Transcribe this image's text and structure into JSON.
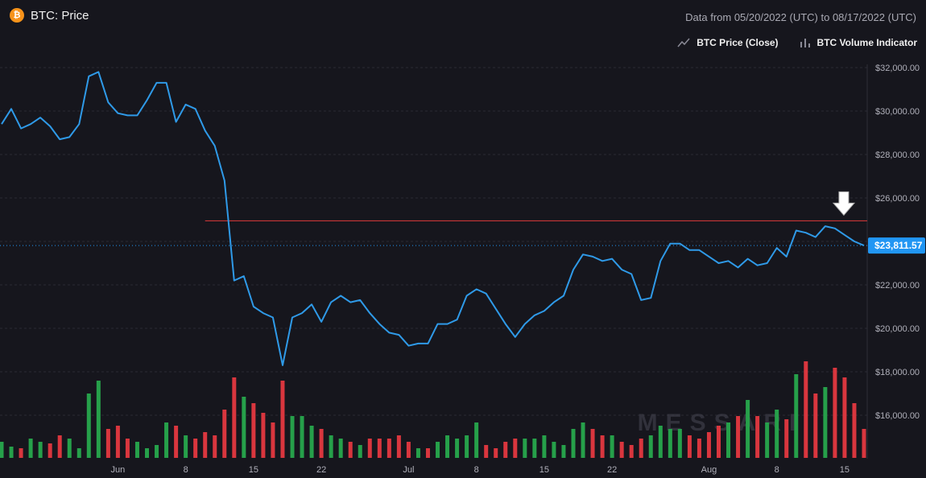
{
  "header": {
    "coin_symbol": "₿",
    "title": "BTC: Price",
    "date_range": "Data from 05/20/2022 (UTC) to 08/17/2022 (UTC)"
  },
  "legend": {
    "price_label": "BTC Price (Close)",
    "volume_label": "BTC Volume Indicator",
    "price_icon": "line-chart-icon",
    "volume_icon": "bar-chart-icon"
  },
  "watermark": "MESSARI",
  "colors": {
    "line": "#2f9ae8",
    "up": "#26a04a",
    "down": "#d9363e",
    "resistance": "#e03a3a",
    "price_tag": "#2196f3",
    "arrow": "#ffffff"
  },
  "chart_data": {
    "type": "line",
    "x_start": "2022-05-20",
    "x_end": "2022-08-17",
    "ylim": [
      14000,
      34000
    ],
    "y_ticks": [
      16000,
      18000,
      20000,
      22000,
      24000,
      26000,
      28000,
      30000,
      32000
    ],
    "y_tick_labels": [
      "$16,000.00",
      "$18,000.00",
      "$20,000.00",
      "$22,000.00",
      "",
      "$26,000.00",
      "$28,000.00",
      "$30,000.00",
      "$32,000.00"
    ],
    "x_ticks": [
      {
        "date": "2022-06-01",
        "label": "Jun"
      },
      {
        "date": "2022-06-08",
        "label": "8"
      },
      {
        "date": "2022-06-15",
        "label": "15"
      },
      {
        "date": "2022-06-22",
        "label": "22"
      },
      {
        "date": "2022-07-01",
        "label": "Jul"
      },
      {
        "date": "2022-07-08",
        "label": "8"
      },
      {
        "date": "2022-07-15",
        "label": "15"
      },
      {
        "date": "2022-07-22",
        "label": "22"
      },
      {
        "date": "2022-08-01",
        "label": "Aug"
      },
      {
        "date": "2022-08-08",
        "label": "8"
      },
      {
        "date": "2022-08-15",
        "label": "15"
      }
    ],
    "last_price": 23811.57,
    "last_price_label": "$23,811.57",
    "resistance_level": 24950,
    "resistance_start": "2022-06-10",
    "arrow_date": "2022-08-15",
    "series": [
      {
        "name": "BTC Price (Close)",
        "x": [
          "2022-05-20",
          "2022-05-21",
          "2022-05-22",
          "2022-05-23",
          "2022-05-24",
          "2022-05-25",
          "2022-05-26",
          "2022-05-27",
          "2022-05-28",
          "2022-05-29",
          "2022-05-30",
          "2022-05-31",
          "2022-06-01",
          "2022-06-02",
          "2022-06-03",
          "2022-06-04",
          "2022-06-05",
          "2022-06-06",
          "2022-06-07",
          "2022-06-08",
          "2022-06-09",
          "2022-06-10",
          "2022-06-11",
          "2022-06-12",
          "2022-06-13",
          "2022-06-14",
          "2022-06-15",
          "2022-06-16",
          "2022-06-17",
          "2022-06-18",
          "2022-06-19",
          "2022-06-20",
          "2022-06-21",
          "2022-06-22",
          "2022-06-23",
          "2022-06-24",
          "2022-06-25",
          "2022-06-26",
          "2022-06-27",
          "2022-06-28",
          "2022-06-29",
          "2022-06-30",
          "2022-07-01",
          "2022-07-02",
          "2022-07-03",
          "2022-07-04",
          "2022-07-05",
          "2022-07-06",
          "2022-07-07",
          "2022-07-08",
          "2022-07-09",
          "2022-07-10",
          "2022-07-11",
          "2022-07-12",
          "2022-07-13",
          "2022-07-14",
          "2022-07-15",
          "2022-07-16",
          "2022-07-17",
          "2022-07-18",
          "2022-07-19",
          "2022-07-20",
          "2022-07-21",
          "2022-07-22",
          "2022-07-23",
          "2022-07-24",
          "2022-07-25",
          "2022-07-26",
          "2022-07-27",
          "2022-07-28",
          "2022-07-29",
          "2022-07-30",
          "2022-07-31",
          "2022-08-01",
          "2022-08-02",
          "2022-08-03",
          "2022-08-04",
          "2022-08-05",
          "2022-08-06",
          "2022-08-07",
          "2022-08-08",
          "2022-08-09",
          "2022-08-10",
          "2022-08-11",
          "2022-08-12",
          "2022-08-13",
          "2022-08-14",
          "2022-08-15",
          "2022-08-16",
          "2022-08-17"
        ],
        "values": [
          29400,
          30100,
          29200,
          29400,
          29700,
          29300,
          28700,
          28800,
          29400,
          31600,
          31800,
          30400,
          29900,
          29800,
          29800,
          30500,
          31300,
          31300,
          29500,
          30300,
          30100,
          29100,
          28400,
          26800,
          22200,
          22400,
          21000,
          20700,
          20500,
          18300,
          20500,
          20700,
          21100,
          20300,
          21200,
          21500,
          21200,
          21300,
          20700,
          20200,
          19800,
          19700,
          19200,
          19300,
          19300,
          20200,
          20200,
          20400,
          21500,
          21800,
          21600,
          20900,
          20200,
          19600,
          20200,
          20600,
          20800,
          21200,
          21500,
          22700,
          23400,
          23300,
          23100,
          23200,
          22700,
          22500,
          21300,
          21400,
          23100,
          23900,
          23900,
          23600,
          23600,
          23300,
          23000,
          23100,
          22800,
          23200,
          22900,
          23000,
          23700,
          23300,
          24500,
          24400,
          24200,
          24700,
          24600,
          24300,
          24000,
          23812
        ]
      },
      {
        "name": "BTC Volume Indicator",
        "x": [
          "2022-05-20",
          "2022-05-21",
          "2022-05-22",
          "2022-05-23",
          "2022-05-24",
          "2022-05-25",
          "2022-05-26",
          "2022-05-27",
          "2022-05-28",
          "2022-05-29",
          "2022-05-30",
          "2022-05-31",
          "2022-06-01",
          "2022-06-02",
          "2022-06-03",
          "2022-06-04",
          "2022-06-05",
          "2022-06-06",
          "2022-06-07",
          "2022-06-08",
          "2022-06-09",
          "2022-06-10",
          "2022-06-11",
          "2022-06-12",
          "2022-06-13",
          "2022-06-14",
          "2022-06-15",
          "2022-06-16",
          "2022-06-17",
          "2022-06-18",
          "2022-06-19",
          "2022-06-20",
          "2022-06-21",
          "2022-06-22",
          "2022-06-23",
          "2022-06-24",
          "2022-06-25",
          "2022-06-26",
          "2022-06-27",
          "2022-06-28",
          "2022-06-29",
          "2022-06-30",
          "2022-07-01",
          "2022-07-02",
          "2022-07-03",
          "2022-07-04",
          "2022-07-05",
          "2022-07-06",
          "2022-07-07",
          "2022-07-08",
          "2022-07-09",
          "2022-07-10",
          "2022-07-11",
          "2022-07-12",
          "2022-07-13",
          "2022-07-14",
          "2022-07-15",
          "2022-07-16",
          "2022-07-17",
          "2022-07-18",
          "2022-07-19",
          "2022-07-20",
          "2022-07-21",
          "2022-07-22",
          "2022-07-23",
          "2022-07-24",
          "2022-07-25",
          "2022-07-26",
          "2022-07-27",
          "2022-07-28",
          "2022-07-29",
          "2022-07-30",
          "2022-07-31",
          "2022-08-01",
          "2022-08-02",
          "2022-08-03",
          "2022-08-04",
          "2022-08-05",
          "2022-08-06",
          "2022-08-07",
          "2022-08-08",
          "2022-08-09",
          "2022-08-10",
          "2022-08-11",
          "2022-08-12",
          "2022-08-13",
          "2022-08-14",
          "2022-08-15",
          "2022-08-16",
          "2022-08-17"
        ],
        "values": [
          0.1,
          0.07,
          0.06,
          0.12,
          0.1,
          0.09,
          0.14,
          0.12,
          0.06,
          0.4,
          0.48,
          0.18,
          0.2,
          0.12,
          0.1,
          0.06,
          0.08,
          0.22,
          0.2,
          0.14,
          0.12,
          0.16,
          0.14,
          0.3,
          0.5,
          0.38,
          0.34,
          0.28,
          0.22,
          0.48,
          0.26,
          0.26,
          0.2,
          0.18,
          0.14,
          0.12,
          0.1,
          0.08,
          0.12,
          0.12,
          0.12,
          0.14,
          0.1,
          0.06,
          0.06,
          0.1,
          0.14,
          0.12,
          0.14,
          0.22,
          0.08,
          0.06,
          0.1,
          0.12,
          0.12,
          0.12,
          0.14,
          0.1,
          0.08,
          0.18,
          0.22,
          0.18,
          0.14,
          0.14,
          0.1,
          0.08,
          0.12,
          0.14,
          0.2,
          0.18,
          0.18,
          0.14,
          0.12,
          0.16,
          0.2,
          0.22,
          0.26,
          0.36,
          0.26,
          0.22,
          0.3,
          0.24,
          0.52,
          0.6,
          0.4,
          0.44,
          0.56,
          0.5,
          0.34,
          0.18
        ],
        "direction": [
          "up",
          "up",
          "down",
          "up",
          "up",
          "down",
          "down",
          "up",
          "up",
          "up",
          "up",
          "down",
          "down",
          "down",
          "up",
          "up",
          "up",
          "up",
          "down",
          "up",
          "down",
          "down",
          "down",
          "down",
          "down",
          "up",
          "down",
          "down",
          "down",
          "down",
          "up",
          "up",
          "up",
          "down",
          "up",
          "up",
          "down",
          "up",
          "down",
          "down",
          "down",
          "down",
          "down",
          "up",
          "down",
          "up",
          "up",
          "up",
          "up",
          "up",
          "down",
          "down",
          "down",
          "down",
          "up",
          "up",
          "up",
          "up",
          "up",
          "up",
          "up",
          "down",
          "down",
          "up",
          "down",
          "down",
          "down",
          "up",
          "up",
          "up",
          "up",
          "down",
          "down",
          "down",
          "down",
          "up",
          "down",
          "up",
          "down",
          "up",
          "up",
          "down",
          "up",
          "down",
          "down",
          "up",
          "down",
          "down",
          "down",
          "down"
        ]
      }
    ]
  }
}
